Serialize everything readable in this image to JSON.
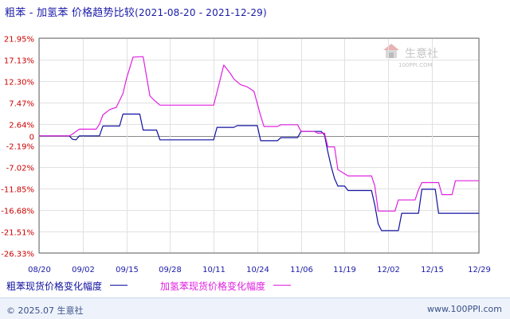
{
  "title": {
    "main": "粗苯 - 加氢苯 价格趋势比较",
    "range": "(2021-08-20 - 2021-12-29)"
  },
  "watermark": {
    "name": "生意社",
    "url": "100PPI.COM"
  },
  "footer": {
    "copyright": "© 2025.07 生意社",
    "site": "www.100PPI.com"
  },
  "colors": {
    "background": "#ffffff",
    "plot_border": "#666666",
    "grid": "#e1e1e1",
    "zero_line": "#8a8a8a",
    "y_tick_text": "#cc0000",
    "x_tick_text": "#1a1aa8",
    "series1": "#1010a0",
    "series2": "#e020e0"
  },
  "chart_data": {
    "type": "line",
    "title": "粗苯 - 加氢苯 价格趋势比较",
    "subtitle": "(2021-08-20 - 2021-12-29)",
    "xlabel": "",
    "ylabel": "",
    "y_unit": "%",
    "ylim": [
      -26.33,
      21.95
    ],
    "yticks": [
      21.95,
      17.13,
      12.3,
      7.47,
      2.64,
      0,
      -2.19,
      -7.02,
      -11.85,
      -16.68,
      -21.51,
      -26.33
    ],
    "ytick_labels": [
      "21.95%",
      "17.13%",
      "12.30%",
      "7.47%",
      "2.64%",
      "0",
      "-2.19%",
      "-7.02%",
      "-11.85%",
      "-16.68%",
      "-21.51%",
      "-26.33%"
    ],
    "x_start": "2021-08-20",
    "x_end": "2021-12-29",
    "xticks": [
      "2021-08-20",
      "2021-09-02",
      "2021-09-15",
      "2021-09-28",
      "2021-10-11",
      "2021-10-24",
      "2021-11-06",
      "2021-11-19",
      "2021-12-02",
      "2021-12-15",
      "2021-12-29"
    ],
    "xtick_labels": [
      "08/20",
      "09/02",
      "09/15",
      "09/28",
      "10/11",
      "10/24",
      "11/06",
      "11/19",
      "12/02",
      "12/15",
      "12/29"
    ],
    "grid": true,
    "legend_position": "bottom",
    "series": [
      {
        "name": "粗苯现货价格变化幅度",
        "color": "#1010a0",
        "points": [
          [
            "2021-08-20",
            0
          ],
          [
            "2021-08-29",
            0
          ],
          [
            "2021-08-30",
            -0.8
          ],
          [
            "2021-08-31",
            -0.9
          ],
          [
            "2021-09-01",
            0
          ],
          [
            "2021-09-07",
            0
          ],
          [
            "2021-09-08",
            2.2
          ],
          [
            "2021-09-13",
            2.2
          ],
          [
            "2021-09-14",
            4.9
          ],
          [
            "2021-09-19",
            4.9
          ],
          [
            "2021-09-20",
            1.3
          ],
          [
            "2021-09-24",
            1.3
          ],
          [
            "2021-09-25",
            -0.9
          ],
          [
            "2021-10-11",
            -0.9
          ],
          [
            "2021-10-12",
            1.9
          ],
          [
            "2021-10-17",
            1.9
          ],
          [
            "2021-10-18",
            2.3
          ],
          [
            "2021-10-24",
            2.3
          ],
          [
            "2021-10-25",
            -1.1
          ],
          [
            "2021-10-30",
            -1.1
          ],
          [
            "2021-10-31",
            -0.4
          ],
          [
            "2021-11-05",
            -0.4
          ],
          [
            "2021-11-06",
            1.0
          ],
          [
            "2021-11-12",
            1.0
          ],
          [
            "2021-11-13",
            0.2
          ],
          [
            "2021-11-14",
            -3.6
          ],
          [
            "2021-11-15",
            -6.9
          ],
          [
            "2021-11-16",
            -9.6
          ],
          [
            "2021-11-17",
            -11.3
          ],
          [
            "2021-11-19",
            -11.3
          ],
          [
            "2021-11-20",
            -12.3
          ],
          [
            "2021-11-27",
            -12.3
          ],
          [
            "2021-11-28",
            -15.6
          ],
          [
            "2021-11-29",
            -19.8
          ],
          [
            "2021-11-30",
            -21.3
          ],
          [
            "2021-12-05",
            -21.3
          ],
          [
            "2021-12-06",
            -17.4
          ],
          [
            "2021-12-11",
            -17.4
          ],
          [
            "2021-12-12",
            -12.0
          ],
          [
            "2021-12-16",
            -12.0
          ],
          [
            "2021-12-17",
            -17.4
          ],
          [
            "2021-12-29",
            -17.4
          ]
        ]
      },
      {
        "name": "加氢苯现货价格变化幅度",
        "color": "#e020e0",
        "points": [
          [
            "2021-08-20",
            0
          ],
          [
            "2021-08-29",
            0
          ],
          [
            "2021-08-30",
            0.4
          ],
          [
            "2021-08-31",
            1.0
          ],
          [
            "2021-09-01",
            1.5
          ],
          [
            "2021-09-06",
            1.5
          ],
          [
            "2021-09-07",
            2.6
          ],
          [
            "2021-09-08",
            4.7
          ],
          [
            "2021-09-10",
            5.9
          ],
          [
            "2021-09-12",
            6.4
          ],
          [
            "2021-09-14",
            9.5
          ],
          [
            "2021-09-15",
            12.8
          ],
          [
            "2021-09-17",
            17.7
          ],
          [
            "2021-09-20",
            17.8
          ],
          [
            "2021-09-22",
            9.0
          ],
          [
            "2021-09-23",
            8.2
          ],
          [
            "2021-09-25",
            6.9
          ],
          [
            "2021-10-11",
            6.9
          ],
          [
            "2021-10-12",
            9.8
          ],
          [
            "2021-10-14",
            15.9
          ],
          [
            "2021-10-16",
            14.0
          ],
          [
            "2021-10-17",
            12.8
          ],
          [
            "2021-10-19",
            11.5
          ],
          [
            "2021-10-21",
            11.0
          ],
          [
            "2021-10-23",
            10.0
          ],
          [
            "2021-10-25",
            4.5
          ],
          [
            "2021-10-26",
            2.1
          ],
          [
            "2021-10-30",
            2.1
          ],
          [
            "2021-10-31",
            2.5
          ],
          [
            "2021-11-05",
            2.5
          ],
          [
            "2021-11-06",
            1.0
          ],
          [
            "2021-11-10",
            1.0
          ],
          [
            "2021-11-11",
            0.6
          ],
          [
            "2021-11-13",
            0.6
          ],
          [
            "2021-11-14",
            -2.5
          ],
          [
            "2021-11-16",
            -2.5
          ],
          [
            "2021-11-17",
            -7.6
          ],
          [
            "2021-11-20",
            -9.0
          ],
          [
            "2021-11-27",
            -9.0
          ],
          [
            "2021-11-28",
            -11.3
          ],
          [
            "2021-11-29",
            -16.9
          ],
          [
            "2021-12-04",
            -16.9
          ],
          [
            "2021-12-05",
            -14.4
          ],
          [
            "2021-12-10",
            -14.4
          ],
          [
            "2021-12-11",
            -12.1
          ],
          [
            "2021-12-12",
            -10.5
          ],
          [
            "2021-12-17",
            -10.5
          ],
          [
            "2021-12-18",
            -13.2
          ],
          [
            "2021-12-21",
            -13.2
          ],
          [
            "2021-12-22",
            -10.1
          ],
          [
            "2021-12-29",
            -10.1
          ]
        ]
      }
    ]
  }
}
